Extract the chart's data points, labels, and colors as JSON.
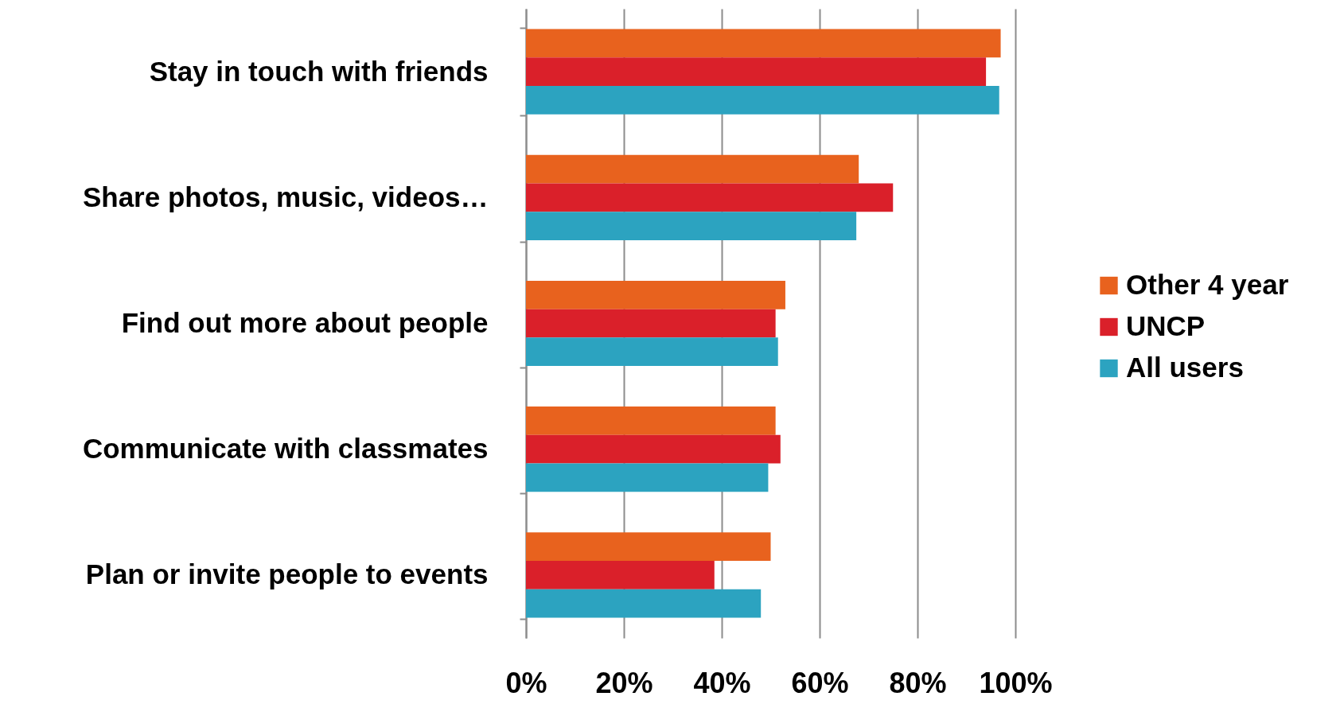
{
  "chart_data": {
    "type": "bar",
    "orientation": "horizontal",
    "categories": [
      "Stay in touch with friends",
      "Share photos, music, videos…",
      "Find out more about people",
      "Communicate with classmates",
      "Plan or invite people to events"
    ],
    "series": [
      {
        "name": "Other 4 year",
        "color": "#e8621e",
        "values": [
          97,
          68,
          53,
          51,
          50
        ]
      },
      {
        "name": "UNCP",
        "color": "#da202a",
        "values": [
          94,
          75,
          51,
          52,
          38.5
        ]
      },
      {
        "name": "All users",
        "color": "#2ca3c0",
        "values": [
          96.7,
          67.5,
          51.5,
          49.5,
          48
        ]
      }
    ],
    "xlim": [
      0,
      100
    ],
    "xticks": [
      {
        "value": 0,
        "label": "0%"
      },
      {
        "value": 20,
        "label": "20%"
      },
      {
        "value": 40,
        "label": "40%"
      },
      {
        "value": 60,
        "label": "60%"
      },
      {
        "value": 80,
        "label": "80%"
      },
      {
        "value": 100,
        "label": "100%"
      }
    ],
    "grid": "x",
    "legend": "right"
  }
}
